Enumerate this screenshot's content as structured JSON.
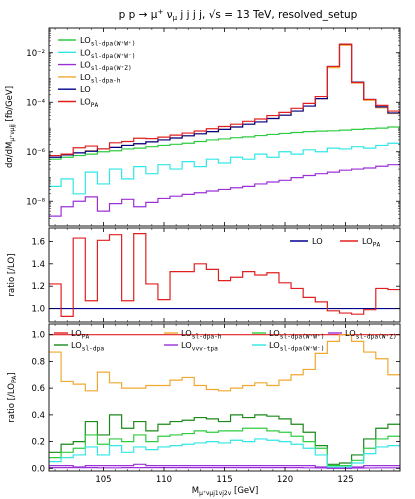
{
  "figure": {
    "title_parts": [
      "p p → μ",
      "+",
      " ν",
      "μ",
      " j j j j,",
      "√s = 13 TeV,",
      "resolved_setup"
    ]
  },
  "chart_data": [
    {
      "type": "line",
      "panel": "top",
      "ylabel": "dσ/dM_{μ+ν_μ jj} [fb/GeV]",
      "yscale": "log",
      "ylim": [
        1e-09,
        0.1
      ],
      "yticks": [
        "10⁻⁸",
        "10⁻⁶",
        "10⁻⁴",
        "10⁻²"
      ],
      "bin_edges": [
        100.5,
        101.5,
        102.5,
        103.5,
        104.5,
        105.5,
        106.5,
        107.5,
        108.5,
        109.5,
        110.5,
        111.5,
        112.5,
        113.5,
        114.5,
        115.5,
        116.5,
        117.5,
        118.5,
        119.5,
        120.5,
        121.5,
        122.5,
        123.5,
        124.5,
        125.5,
        126.5,
        127.5,
        128.5,
        129.5
      ],
      "legend": "top-left",
      "series": [
        {
          "name": "LO_{sl-dpa(W+W+)}",
          "color": "#2ecc40",
          "values": [
            5e-07,
            6e-07,
            7e-07,
            8e-07,
            1e-06,
            1.1e-06,
            1.3e-06,
            1.4e-06,
            1.6e-06,
            1.8e-06,
            2e-06,
            2.2e-06,
            2.6e-06,
            3e-06,
            3.3e-06,
            3.7e-06,
            4e-06,
            4.5e-06,
            5e-06,
            5.5e-06,
            6e-06,
            6.5e-06,
            6.8e-06,
            7e-06,
            7.5e-06,
            8e-06,
            8.5e-06,
            9e-06,
            1e-05
          ]
        },
        {
          "name": "LO_{sl-dpa(W+W-)}",
          "color": "#33e6e6",
          "values": [
            4e-08,
            8e-08,
            2e-08,
            1.5e-07,
            5e-08,
            2e-07,
            8e-08,
            2.5e-07,
            1.3e-07,
            3e-07,
            2e-07,
            4e-07,
            2.5e-07,
            5e-07,
            3.5e-07,
            6e-07,
            5e-07,
            8e-07,
            6e-07,
            1e-06,
            8e-07,
            1.2e-06,
            1e-06,
            1.4e-06,
            1.3e-06,
            1.6e-06,
            1.4e-06,
            1.8e-06,
            2.2e-06
          ]
        },
        {
          "name": "LO_{sl-dpa(W+Z)}",
          "color": "#9b30d9",
          "values": [
            2.5e-09,
            6e-09,
            1e-08,
            1.5e-08,
            4e-09,
            8e-09,
            1.2e-08,
            6e-09,
            9e-09,
            1.3e-08,
            1.6e-08,
            1.9e-08,
            2.2e-08,
            2.6e-08,
            3e-08,
            3.5e-08,
            4e-08,
            5e-08,
            6e-08,
            7e-08,
            9e-08,
            1.1e-07,
            1.3e-07,
            1.5e-07,
            1.8e-07,
            2e-07,
            2.2e-07,
            2.6e-07,
            3e-07
          ]
        },
        {
          "name": "LO_{sl-dpa-h}",
          "color": "#f0a830",
          "values": [
            7e-07,
            8e-07,
            9e-07,
            1.1e-06,
            1.3e-06,
            1.5e-06,
            1.8e-06,
            2.1e-06,
            2.5e-06,
            3e-06,
            3.6e-06,
            4.4e-06,
            5.3e-06,
            6.5e-06,
            8e-06,
            1e-05,
            1.3e-05,
            1.6e-05,
            2.2e-05,
            3e-05,
            4.4e-05,
            7e-05,
            0.00014,
            0.0025,
            0.02,
            0.0006,
            0.00012,
            6e-05,
            3.5e-05
          ]
        },
        {
          "name": "LO",
          "color": "#00008b",
          "values": [
            6e-07,
            7.5e-07,
            9e-07,
            1.05e-06,
            1.3e-06,
            1.5e-06,
            1.8e-06,
            2.1e-06,
            2.5e-06,
            3e-06,
            3.6e-06,
            4.4e-06,
            5.3e-06,
            6.5e-06,
            8e-06,
            1e-05,
            1.3e-05,
            1.6e-05,
            2.2e-05,
            3e-05,
            4.4e-05,
            7e-05,
            0.00014,
            0.0028,
            0.022,
            0.00065,
            0.00013,
            6.5e-05,
            3.7e-05
          ]
        },
        {
          "name": "LO_{PA}",
          "color": "#e02020",
          "values": [
            7e-07,
            8e-07,
            1.45e-06,
            1.7e-06,
            1.3e-06,
            2.3e-06,
            2.6e-06,
            3.5e-06,
            3.4e-06,
            3.9e-06,
            4.7e-06,
            5.7e-06,
            6.9e-06,
            8.5e-06,
            1.05e-05,
            1.3e-05,
            1.7e-05,
            2.1e-05,
            2.9e-05,
            3.9e-05,
            5.7e-05,
            9e-05,
            0.00017,
            0.0028,
            0.022,
            0.00063,
            0.00013,
            7.5e-05,
            4.4e-05
          ]
        }
      ]
    },
    {
      "type": "line",
      "panel": "middle",
      "ylabel": "ratio [/LO]",
      "ylim": [
        0.88,
        1.72
      ],
      "yticks": [
        "1.0",
        "1.2",
        "1.4",
        "1.6"
      ],
      "bin_edges": [
        100.5,
        101.5,
        102.5,
        103.5,
        104.5,
        105.5,
        106.5,
        107.5,
        108.5,
        109.5,
        110.5,
        111.5,
        112.5,
        113.5,
        114.5,
        115.5,
        116.5,
        117.5,
        118.5,
        119.5,
        120.5,
        121.5,
        122.5,
        123.5,
        124.5,
        125.5,
        126.5,
        127.5,
        128.5,
        129.5
      ],
      "legend": "top-right",
      "series": [
        {
          "name": "LO",
          "color": "#00008b",
          "values": [
            1,
            1,
            1,
            1,
            1,
            1,
            1,
            1,
            1,
            1,
            1,
            1,
            1,
            1,
            1,
            1,
            1,
            1,
            1,
            1,
            1,
            1,
            1,
            1,
            1,
            1,
            1,
            1,
            1
          ]
        },
        {
          "name": "LO_{PA}",
          "color": "#e02020",
          "values": [
            1.22,
            0.93,
            1.63,
            1.07,
            1.61,
            1.66,
            1.07,
            1.67,
            1.22,
            1.08,
            1.33,
            1.33,
            1.4,
            1.35,
            1.25,
            1.28,
            1.33,
            1.3,
            1.32,
            1.23,
            1.18,
            1.1,
            1.06,
            0.98,
            0.96,
            0.95,
            0.99,
            1.18,
            1.17
          ]
        }
      ]
    },
    {
      "type": "line",
      "panel": "bottom",
      "xlabel": "M_{μ+ν_μ j1v j2v} [GeV]",
      "ylabel": "ratio [/LO_PA]",
      "ylim": [
        -0.02,
        1.08
      ],
      "yticks": [
        "0.0",
        "0.2",
        "0.4",
        "0.6",
        "0.8",
        "1.0"
      ],
      "xlim": [
        100.5,
        129.5
      ],
      "xticks": [
        "105",
        "110",
        "115",
        "120",
        "125"
      ],
      "bin_edges": [
        100.5,
        101.5,
        102.5,
        103.5,
        104.5,
        105.5,
        106.5,
        107.5,
        108.5,
        109.5,
        110.5,
        111.5,
        112.5,
        113.5,
        114.5,
        115.5,
        116.5,
        117.5,
        118.5,
        119.5,
        120.5,
        121.5,
        122.5,
        123.5,
        124.5,
        125.5,
        126.5,
        127.5,
        128.5,
        129.5
      ],
      "legend": "top",
      "series": [
        {
          "name": "LO_{PA}",
          "color": "#e02020",
          "values": [
            1,
            1,
            1,
            1,
            1,
            1,
            1,
            1,
            1,
            1,
            1,
            1,
            1,
            1,
            1,
            1,
            1,
            1,
            1,
            1,
            1,
            1,
            1,
            1,
            1,
            1,
            1,
            1,
            1
          ]
        },
        {
          "name": "LO_{sl-dpa}",
          "color": "#1a8a1a",
          "values": [
            0.12,
            0.18,
            0.2,
            0.35,
            0.25,
            0.4,
            0.3,
            0.35,
            0.28,
            0.33,
            0.35,
            0.36,
            0.38,
            0.37,
            0.35,
            0.4,
            0.38,
            0.4,
            0.39,
            0.37,
            0.33,
            0.27,
            0.17,
            0.03,
            0.04,
            0.1,
            0.22,
            0.3,
            0.33
          ]
        },
        {
          "name": "LO_{sl-dpa-h}",
          "color": "#f0a830",
          "values": [
            0.87,
            0.65,
            0.63,
            0.58,
            0.72,
            0.64,
            0.6,
            0.6,
            0.62,
            0.62,
            0.66,
            0.68,
            0.62,
            0.59,
            0.58,
            0.6,
            0.62,
            0.64,
            0.62,
            0.66,
            0.7,
            0.74,
            0.86,
            0.95,
            1.0,
            0.95,
            0.87,
            0.82,
            0.7
          ]
        },
        {
          "name": "LO_{vvv-tpa}",
          "color": "#9b30d9",
          "values": [
            0.02,
            0.02,
            0.01,
            0.02,
            0.02,
            0.02,
            0.02,
            0.03,
            0.02,
            0.02,
            0.02,
            0.02,
            0.02,
            0.02,
            0.02,
            0.02,
            0.02,
            0.02,
            0.02,
            0.02,
            0.02,
            0.02,
            0.01,
            0.0,
            0.0,
            0.01,
            0.02,
            0.02,
            0.02
          ]
        },
        {
          "name": "LO_{sl-dpa(W+W+)}",
          "color": "#2ecc40",
          "values": [
            0.08,
            0.12,
            0.15,
            0.25,
            0.18,
            0.22,
            0.2,
            0.25,
            0.2,
            0.24,
            0.25,
            0.26,
            0.28,
            0.27,
            0.28,
            0.28,
            0.3,
            0.3,
            0.28,
            0.27,
            0.24,
            0.2,
            0.15,
            0.02,
            0.02,
            0.06,
            0.15,
            0.22,
            0.24
          ]
        },
        {
          "name": "LO_{sl-dpa(W+W-)}",
          "color": "#33e6e6",
          "values": [
            0.05,
            0.08,
            0.1,
            0.16,
            0.1,
            0.17,
            0.12,
            0.16,
            0.14,
            0.16,
            0.17,
            0.18,
            0.19,
            0.2,
            0.19,
            0.21,
            0.2,
            0.22,
            0.21,
            0.2,
            0.18,
            0.15,
            0.1,
            0.01,
            0.01,
            0.04,
            0.11,
            0.16,
            0.17
          ]
        },
        {
          "name": "LO_{sl-dpa(W+Z)}",
          "color": "#9b30d9",
          "values": [
            0.005,
            0.005,
            0.005,
            0.005,
            0.004,
            0.004,
            0.005,
            0.005,
            0.005,
            0.005,
            0.005,
            0.005,
            0.005,
            0.005,
            0.005,
            0.005,
            0.005,
            0.005,
            0.005,
            0.005,
            0.005,
            0.004,
            0.003,
            0.001,
            0.001,
            0.002,
            0.003,
            0.004,
            0.004
          ]
        }
      ]
    }
  ]
}
